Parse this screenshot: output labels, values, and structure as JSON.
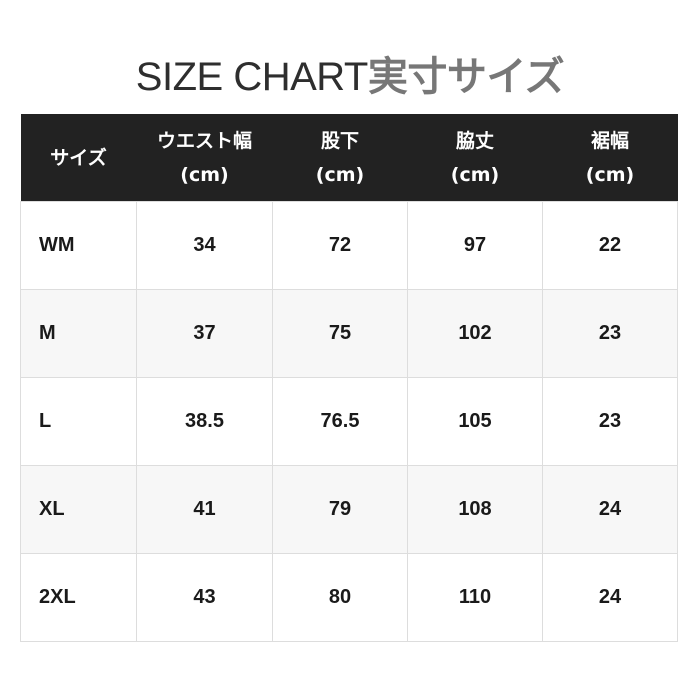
{
  "title": {
    "en": "SIZE CHART",
    "jp": "実寸サイズ"
  },
  "headers": [
    {
      "label": "サイズ",
      "unit": ""
    },
    {
      "label": "ウエスト幅",
      "unit": "(cm)"
    },
    {
      "label": "股下",
      "unit": "(cm)"
    },
    {
      "label": "脇丈",
      "unit": "(cm)"
    },
    {
      "label": "裾幅",
      "unit": "(cm)"
    }
  ],
  "rows": [
    [
      "WM",
      "34",
      "72",
      "97",
      "22"
    ],
    [
      "M",
      "37",
      "75",
      "102",
      "23"
    ],
    [
      "L",
      "38.5",
      "76.5",
      "105",
      "23"
    ],
    [
      "XL",
      "41",
      "79",
      "108",
      "24"
    ],
    [
      "2XL",
      "43",
      "80",
      "110",
      "24"
    ]
  ]
}
